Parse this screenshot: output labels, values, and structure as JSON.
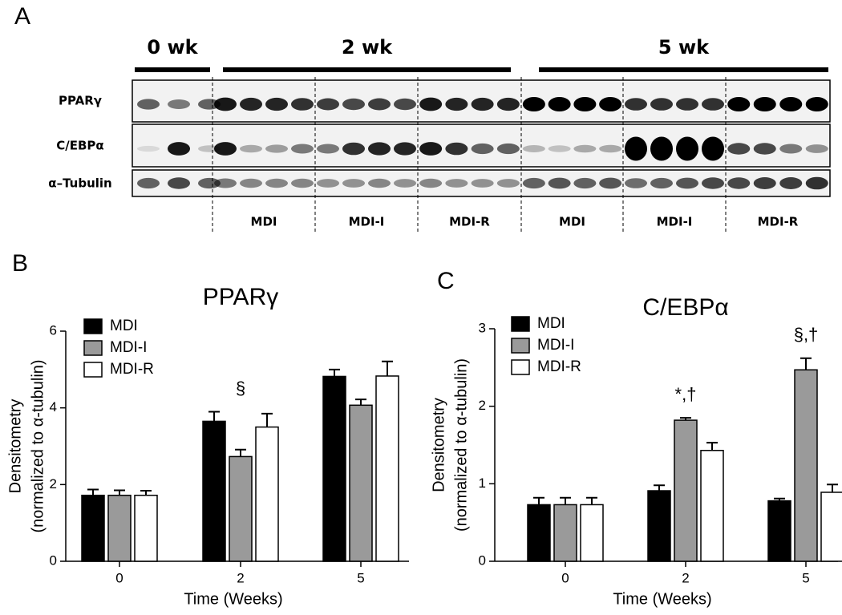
{
  "panel_a": {
    "panel_label": "A",
    "time_labels": [
      "0 wk",
      "2 wk",
      "5 wk"
    ],
    "row_labels": [
      "PPARγ",
      "C/EBPα",
      "α–Tubulin"
    ],
    "group_labels": [
      "MDI",
      "MDI-I",
      "MDI-R",
      "MDI",
      "MDI-I",
      "MDI-R"
    ]
  },
  "chart_data": [
    {
      "type": "bar",
      "panel_label": "B",
      "title": "PPARγ",
      "ylabel": [
        "Densitometry",
        "(normalized to α-tubulin)"
      ],
      "xlabel": "Time  (Weeks)",
      "categories": [
        "0",
        "2",
        "5"
      ],
      "ylim": [
        0,
        6
      ],
      "yticks": [
        0,
        2,
        4,
        6
      ],
      "series": [
        {
          "name": "MDI",
          "color": "#000000",
          "values": [
            1.72,
            3.65,
            4.82
          ],
          "errors": [
            0.15,
            0.25,
            0.18
          ],
          "annotations": [
            null,
            null,
            null
          ]
        },
        {
          "name": "MDI-I",
          "color": "#9a9a9a",
          "values": [
            1.72,
            2.73,
            4.07
          ],
          "errors": [
            0.13,
            0.18,
            0.15
          ],
          "annotations": [
            null,
            "§",
            null
          ]
        },
        {
          "name": "MDI-R",
          "color": "#ffffff",
          "values": [
            1.72,
            3.5,
            4.83
          ],
          "errors": [
            0.12,
            0.35,
            0.38
          ],
          "annotations": [
            null,
            null,
            null
          ]
        }
      ]
    },
    {
      "type": "bar",
      "panel_label": "C",
      "title": "C/EBPα",
      "ylabel": [
        "Densitometry",
        "(normalized to α-tubulin)"
      ],
      "xlabel": "Time  (Weeks)",
      "categories": [
        "0",
        "2",
        "5"
      ],
      "ylim": [
        0,
        3
      ],
      "yticks": [
        0,
        1,
        2,
        3
      ],
      "series": [
        {
          "name": "MDI",
          "color": "#000000",
          "values": [
            0.73,
            0.91,
            0.78
          ],
          "errors": [
            0.09,
            0.07,
            0.03
          ],
          "annotations": [
            null,
            null,
            null
          ]
        },
        {
          "name": "MDI-I",
          "color": "#9a9a9a",
          "values": [
            0.73,
            1.82,
            2.47
          ],
          "errors": [
            0.09,
            0.03,
            0.15
          ],
          "annotations": [
            null,
            "*,†",
            "§,†"
          ]
        },
        {
          "name": "MDI-R",
          "color": "#ffffff",
          "values": [
            0.73,
            1.43,
            0.89
          ],
          "errors": [
            0.09,
            0.1,
            0.1
          ],
          "annotations": [
            null,
            null,
            null
          ]
        }
      ]
    }
  ]
}
